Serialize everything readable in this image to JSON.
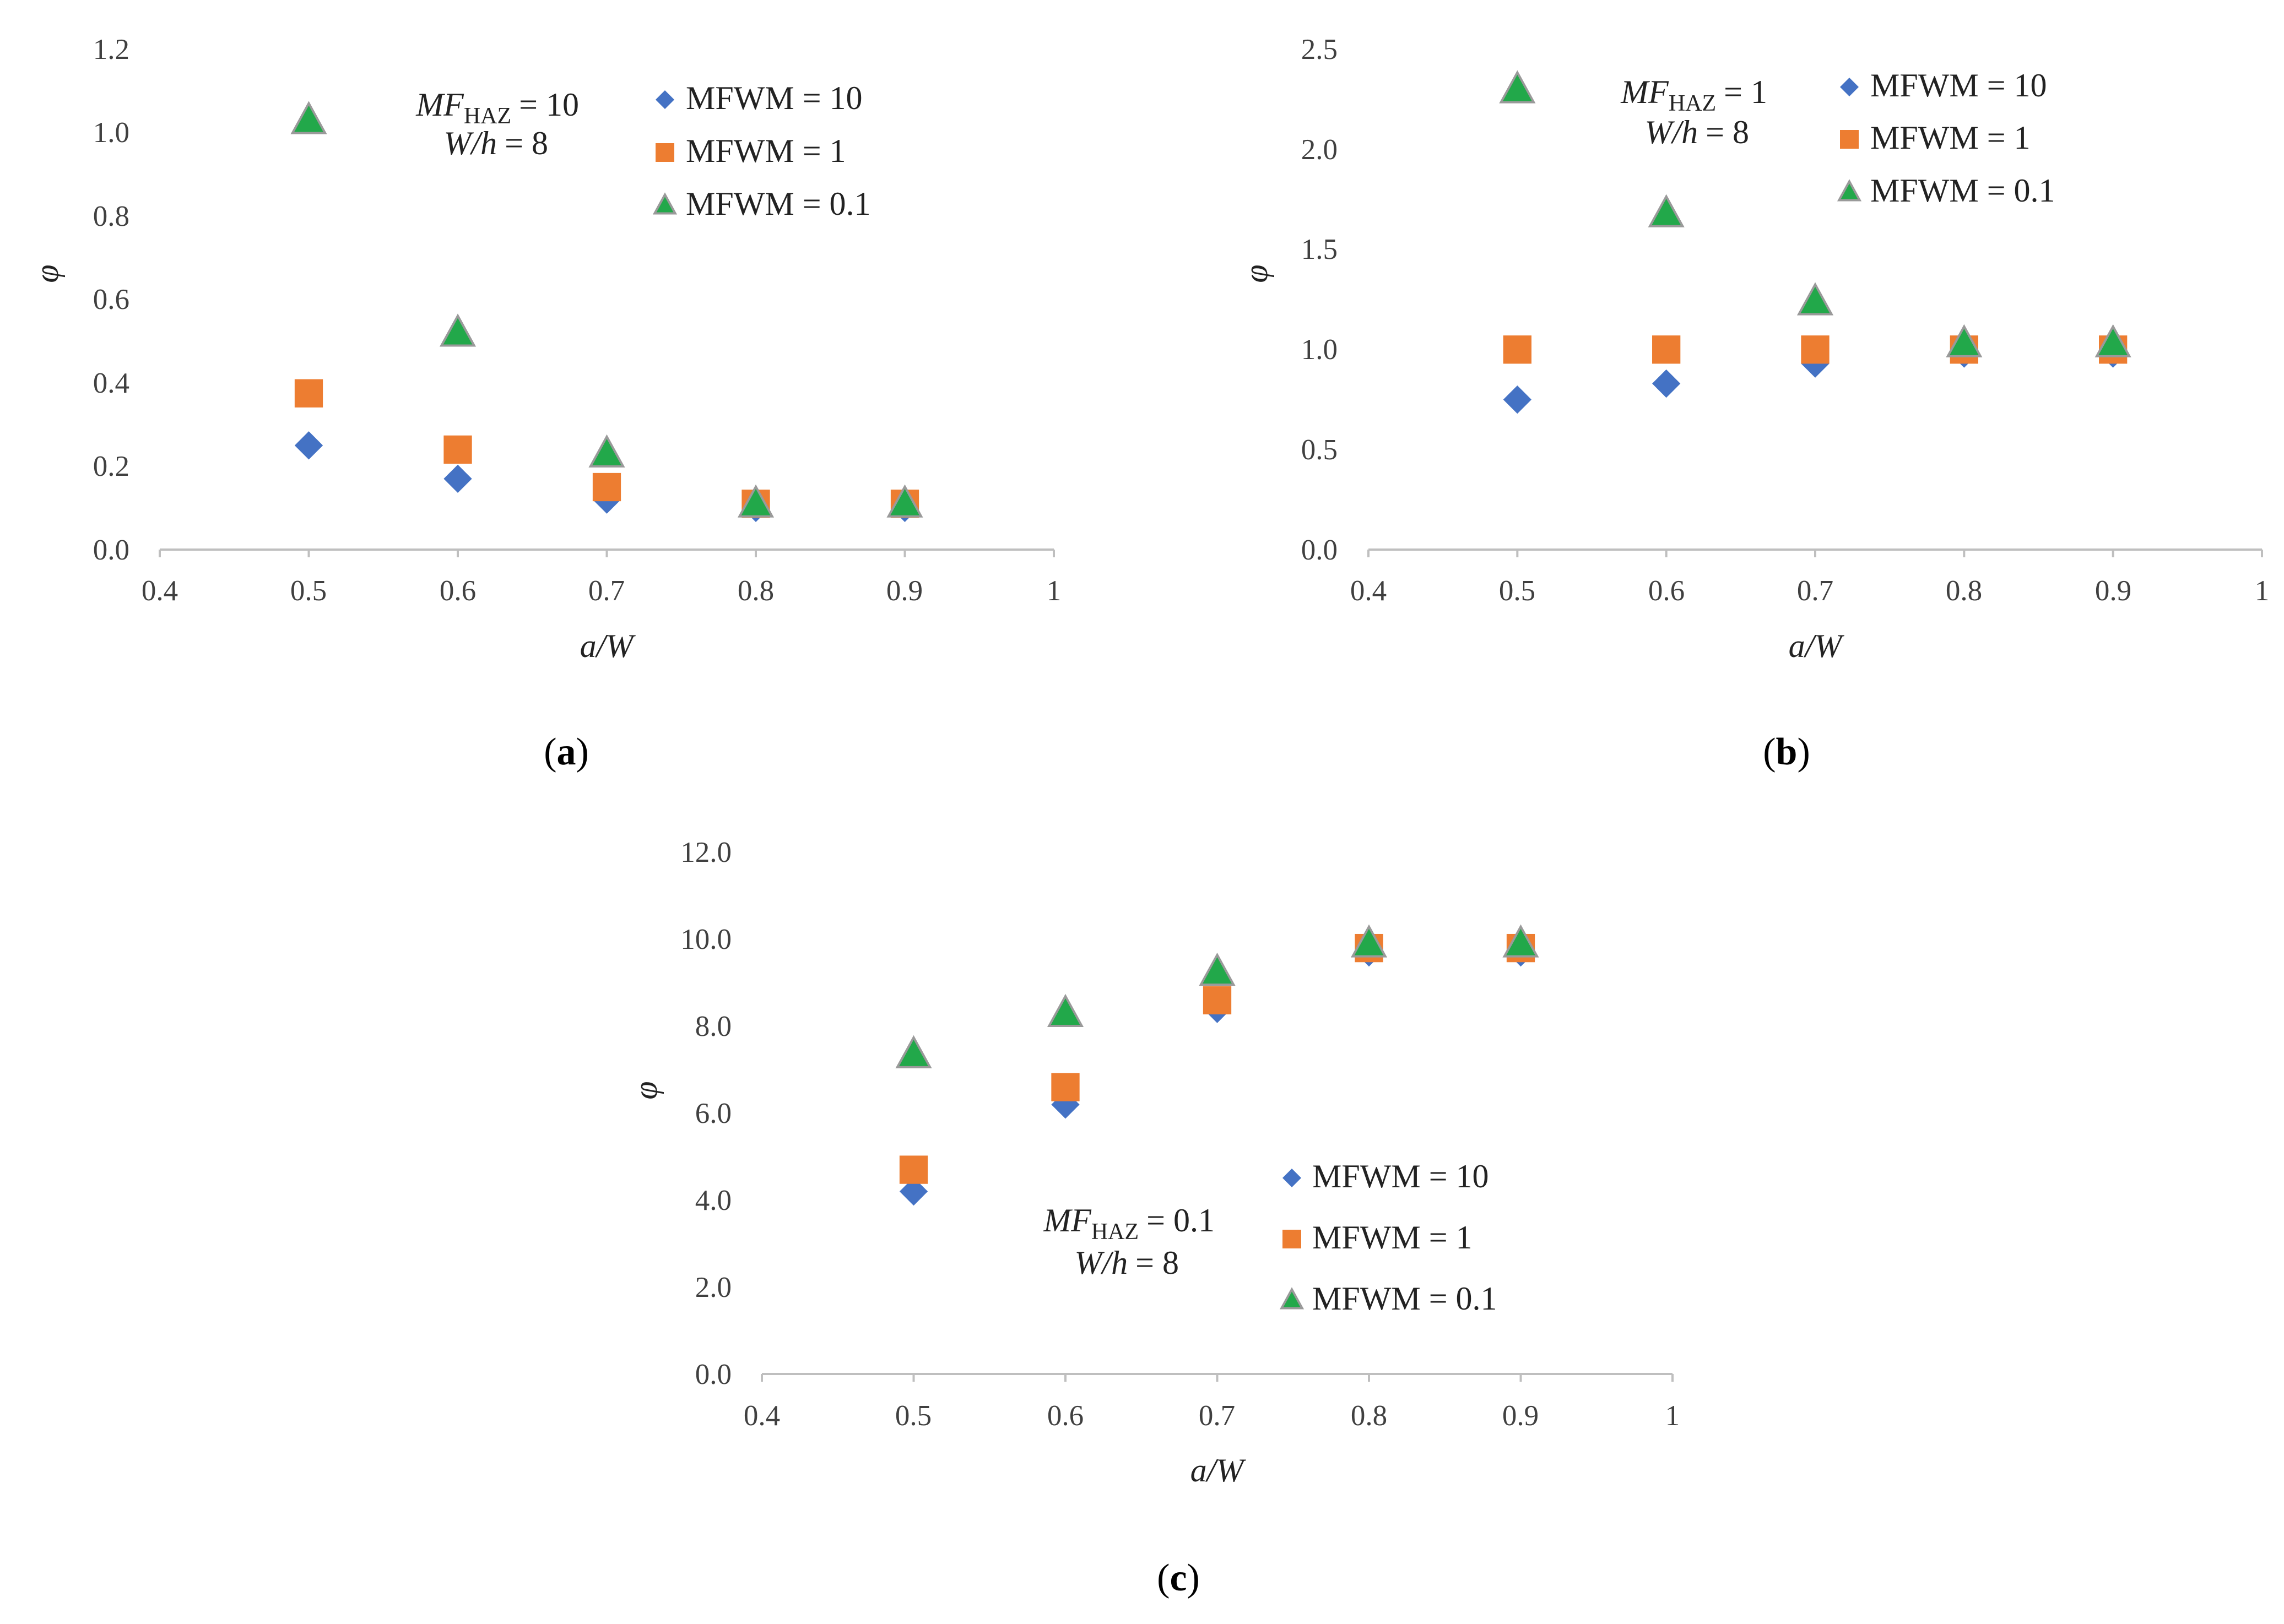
{
  "colors": {
    "MFWM = 10": "#4472c4",
    "MFWM = 1": "#ed7d31",
    "MFWM = 0.1": "#22a84a"
  },
  "chart_data": [
    {
      "type": "scatter",
      "panel": "a",
      "caption": "(a)",
      "caption_letter": "a",
      "xlabel": "a/W",
      "ylabel": "φ",
      "xlim": [
        0.4,
        1
      ],
      "ylim": [
        0,
        1.2
      ],
      "xticks": [
        "0.4",
        "0.5",
        "0.6",
        "0.7",
        "0.8",
        "0.9",
        "1"
      ],
      "yticks": [
        "0.0",
        "0.2",
        "0.4",
        "0.6",
        "0.8",
        "1.0",
        "1.2"
      ],
      "annotation": {
        "mf_label": "MF",
        "mf_sub": "HAZ",
        "mf_value": "= 10",
        "wh_label": "W/h",
        "wh_value": "= 8"
      },
      "legend": [
        "MFWM = 10",
        "MFWM = 1",
        "MFWM = 0.1"
      ],
      "x": [
        0.5,
        0.6,
        0.7,
        0.8,
        0.9
      ],
      "series": [
        {
          "name": "MFWM = 10",
          "marker": "diamond",
          "values": [
            0.25,
            0.17,
            0.12,
            0.1,
            0.1
          ]
        },
        {
          "name": "MFWM = 1",
          "marker": "square",
          "values": [
            0.375,
            0.24,
            0.15,
            0.11,
            0.11
          ]
        },
        {
          "name": "MFWM = 0.1",
          "marker": "triangle",
          "values": [
            1.03,
            0.52,
            0.23,
            0.11,
            0.11
          ]
        }
      ]
    },
    {
      "type": "scatter",
      "panel": "b",
      "caption": "(b)",
      "caption_letter": "b",
      "xlabel": "a/W",
      "ylabel": "φ",
      "xlim": [
        0.4,
        1
      ],
      "ylim": [
        0,
        2.5
      ],
      "xticks": [
        "0.4",
        "0.5",
        "0.6",
        "0.7",
        "0.8",
        "0.9",
        "1"
      ],
      "yticks": [
        "0.0",
        "0.5",
        "1.0",
        "1.5",
        "2.0",
        "2.5"
      ],
      "annotation": {
        "mf_label": "MF",
        "mf_sub": "HAZ",
        "mf_value": "= 1",
        "wh_label": "W/h",
        "wh_value": "= 8"
      },
      "legend": [
        "MFWM = 10",
        "MFWM = 1",
        "MFWM = 0.1"
      ],
      "x": [
        0.5,
        0.6,
        0.7,
        0.8,
        0.9
      ],
      "series": [
        {
          "name": "MFWM = 10",
          "marker": "diamond",
          "values": [
            0.75,
            0.83,
            0.93,
            0.98,
            0.98
          ]
        },
        {
          "name": "MFWM = 1",
          "marker": "square",
          "values": [
            1.0,
            1.0,
            1.0,
            1.0,
            1.0
          ]
        },
        {
          "name": "MFWM = 0.1",
          "marker": "triangle",
          "values": [
            2.3,
            1.68,
            1.24,
            1.03,
            1.03
          ]
        }
      ]
    },
    {
      "type": "scatter",
      "panel": "c",
      "caption": "(c)",
      "caption_letter": "c",
      "xlabel": "a/W",
      "ylabel": "φ",
      "xlim": [
        0.4,
        1
      ],
      "ylim": [
        0,
        12
      ],
      "xticks": [
        "0.4",
        "0.5",
        "0.6",
        "0.7",
        "0.8",
        "0.9",
        "1"
      ],
      "yticks": [
        "0.0",
        "2.0",
        "4.0",
        "6.0",
        "8.0",
        "10.0",
        "12.0"
      ],
      "annotation": {
        "mf_label": "MF",
        "mf_sub": "HAZ",
        "mf_value": "= 0.1",
        "wh_label": "W/h",
        "wh_value": "= 8"
      },
      "legend": [
        "MFWM = 10",
        "MFWM = 1",
        "MFWM = 0.1"
      ],
      "x": [
        0.5,
        0.6,
        0.7,
        0.8,
        0.9
      ],
      "series": [
        {
          "name": "MFWM = 10",
          "marker": "diamond",
          "values": [
            4.2,
            6.2,
            8.4,
            9.7,
            9.7
          ]
        },
        {
          "name": "MFWM = 1",
          "marker": "square",
          "values": [
            4.7,
            6.6,
            8.6,
            9.8,
            9.8
          ]
        },
        {
          "name": "MFWM = 0.1",
          "marker": "triangle",
          "values": [
            7.35,
            8.3,
            9.25,
            9.9,
            9.9
          ]
        }
      ]
    }
  ]
}
